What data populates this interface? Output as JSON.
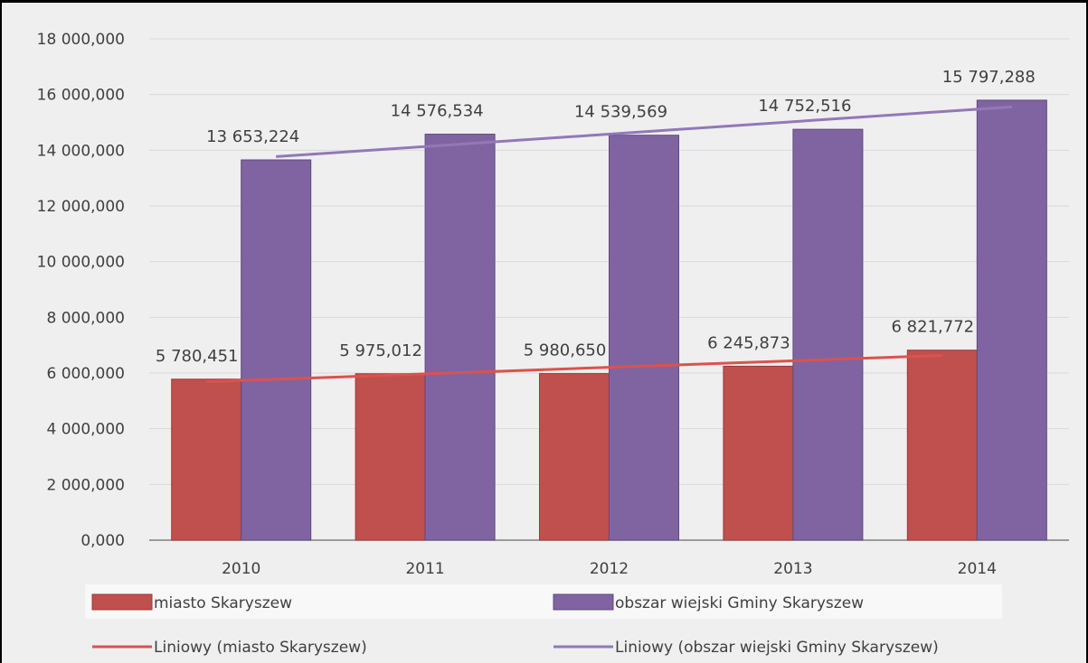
{
  "colors": {
    "miasto": "#c0504d",
    "miasto_edge": "#9c3b38",
    "obszar": "#8064a2",
    "obszar_edge": "#5e4a7c",
    "trend_miasto": "#d9534f",
    "trend_obszar": "#9278b8",
    "grid": "#d9d9d9",
    "axis": "#7f7f7f",
    "legend_bg": "#ffffff"
  },
  "chart_data": {
    "type": "bar",
    "categories": [
      "2010",
      "2011",
      "2012",
      "2013",
      "2014"
    ],
    "series": [
      {
        "name": "miasto Skaryszew",
        "values": [
          5780451,
          5975012,
          5980650,
          6245873,
          6821772
        ],
        "labels": [
          "5 780,451",
          "5 975,012",
          "5 980,650",
          "6 245,873",
          "6 821,772"
        ]
      },
      {
        "name": "obszar wiejski Gminy Skaryszew",
        "values": [
          13653224,
          14576534,
          14539569,
          14752516,
          15797288
        ],
        "labels": [
          "13 653,224",
          "14 576,534",
          "14 539,569",
          "14 752,516",
          "15 797,288"
        ]
      }
    ],
    "trendlines": [
      {
        "name": "Liniowy (miasto Skaryszew)",
        "series": 0,
        "type": "linear"
      },
      {
        "name": "Liniowy (obszar wiejski Gminy Skaryszew)",
        "series": 1,
        "type": "linear"
      }
    ],
    "ylim": [
      0,
      18000000
    ],
    "yticks": [
      0,
      2000000,
      4000000,
      6000000,
      8000000,
      10000000,
      12000000,
      14000000,
      16000000,
      18000000
    ],
    "ytick_labels": [
      "0,000",
      "2 000,000",
      "4 000,000",
      "6 000,000",
      "8 000,000",
      "10 000,000",
      "12 000,000",
      "14 000,000",
      "16 000,000",
      "18 000,000"
    ],
    "grid": true,
    "legend_position": "bottom",
    "title": "",
    "xlabel": "",
    "ylabel": ""
  },
  "legend": [
    {
      "label": "miasto Skaryszew",
      "kind": "box",
      "color": "#c0504d"
    },
    {
      "label": "obszar wiejski Gminy Skaryszew",
      "kind": "box",
      "color": "#8064a2"
    },
    {
      "label": "Liniowy (miasto Skaryszew)",
      "kind": "line",
      "color": "#d9534f"
    },
    {
      "label": "Liniowy (obszar wiejski Gminy Skaryszew)",
      "kind": "line",
      "color": "#9278b8"
    }
  ]
}
